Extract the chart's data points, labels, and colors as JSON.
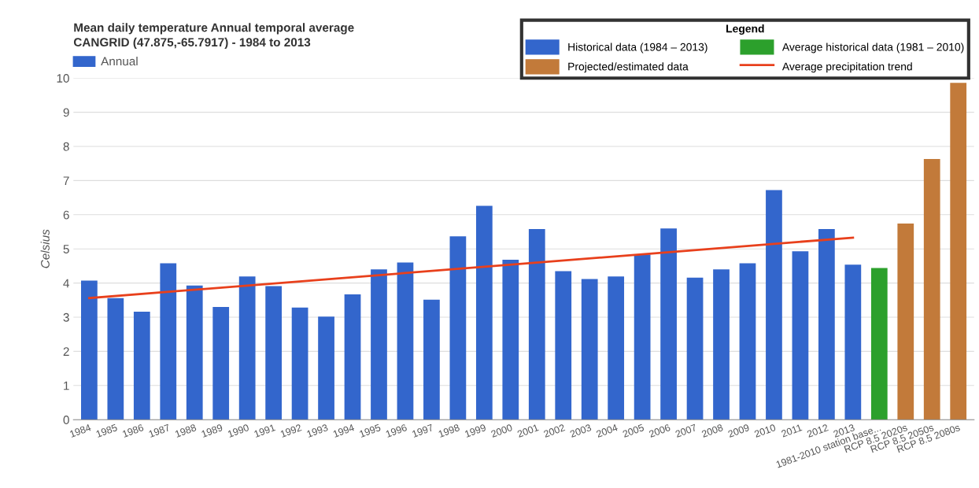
{
  "chart_data": {
    "type": "bar",
    "title": "Mean daily temperature Annual temporal average",
    "subtitle": "CANGRID (47.875,-65.7917) - 1984 to 2013",
    "ylabel": "Celsius",
    "legend_title": "Legend",
    "annotations": [
      "Annual"
    ],
    "categories": [
      "1984",
      "1985",
      "1986",
      "1987",
      "1988",
      "1989",
      "1990",
      "1991",
      "1992",
      "1993",
      "1994",
      "1995",
      "1996",
      "1997",
      "1998",
      "1999",
      "2000",
      "2001",
      "2002",
      "2003",
      "2004",
      "2005",
      "2006",
      "2007",
      "2008",
      "2009",
      "2010",
      "2011",
      "2012",
      "2013",
      "1981-2010 station base...",
      "RCP 8.5 2020s",
      "RCP 8.5 2050s",
      "RCP 8.5 2080s"
    ],
    "series": [
      {
        "name": "Historical data (1984 – 2013)",
        "color": "#3366cc",
        "values": [
          4.07,
          3.56,
          3.16,
          4.58,
          3.93,
          3.3,
          4.19,
          3.91,
          3.28,
          3.02,
          3.67,
          4.4,
          4.6,
          3.51,
          5.37,
          6.26,
          4.68,
          5.58,
          4.35,
          4.12,
          4.19,
          4.84,
          5.6,
          4.16,
          4.4,
          4.58,
          6.72,
          4.93,
          5.58,
          4.54,
          null,
          null,
          null,
          null
        ]
      },
      {
        "name": "Projected/estimated data",
        "color": "#c27a3a",
        "values": [
          null,
          null,
          null,
          null,
          null,
          null,
          null,
          null,
          null,
          null,
          null,
          null,
          null,
          null,
          null,
          null,
          null,
          null,
          null,
          null,
          null,
          null,
          null,
          null,
          null,
          null,
          null,
          null,
          null,
          null,
          null,
          5.74,
          7.63,
          9.86
        ]
      },
      {
        "name": "Average historical data (1981 – 2010)",
        "color": "#2ca02c",
        "values": [
          null,
          null,
          null,
          null,
          null,
          null,
          null,
          null,
          null,
          null,
          null,
          null,
          null,
          null,
          null,
          null,
          null,
          null,
          null,
          null,
          null,
          null,
          null,
          null,
          null,
          null,
          null,
          null,
          null,
          null,
          4.44,
          null,
          null,
          null
        ]
      },
      {
        "name": "Average precipitation trend",
        "type": "line",
        "color": "#e8401c",
        "values": [
          3.56,
          null,
          null,
          null,
          null,
          null,
          null,
          null,
          null,
          null,
          null,
          null,
          null,
          null,
          null,
          null,
          null,
          null,
          null,
          null,
          null,
          null,
          null,
          null,
          null,
          null,
          null,
          null,
          null,
          5.33,
          null,
          null,
          null,
          null
        ]
      }
    ],
    "ylim": [
      0,
      10
    ],
    "yticks": [
      0,
      1,
      2,
      3,
      4,
      5,
      6,
      7,
      8,
      9,
      10
    ],
    "grid": "y",
    "legend": "top right"
  }
}
